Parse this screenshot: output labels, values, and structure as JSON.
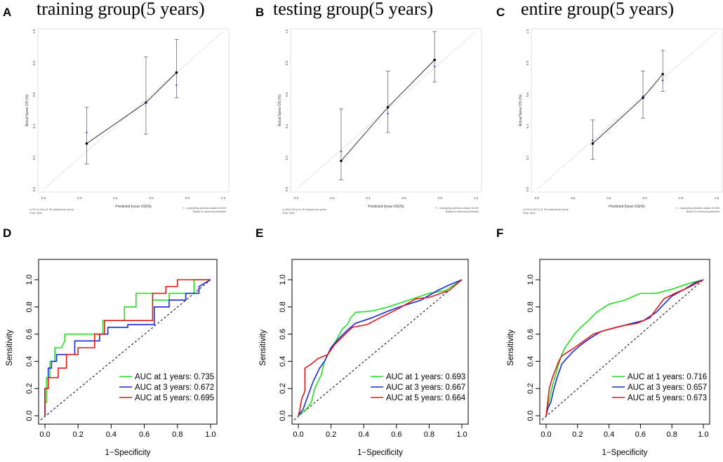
{
  "figure": {
    "panels_top": [
      {
        "letter": "A",
        "title": "training group(5 years)"
      },
      {
        "letter": "B",
        "title": "testing group(5 years)"
      },
      {
        "letter": "C",
        "title": "entire group(5 years)"
      }
    ],
    "panels_bottom": [
      {
        "letter": "D"
      },
      {
        "letter": "E"
      },
      {
        "letter": "F"
      }
    ]
  },
  "colors": {
    "green": "#22e022",
    "blue": "#1a2ad8",
    "red": "#e01818",
    "black": "#000000",
    "diag_gray": "#dddddd",
    "calib_blue": "#3344dd"
  },
  "chart_data": [
    {
      "type": "scatter",
      "panel": "A",
      "title": "training group(5 years)",
      "xlabel": "Predicted 5year OS(%)",
      "ylabel": "Actual 5year OS (%)",
      "xlim": [
        0,
        1
      ],
      "ylim": [
        0,
        1
      ],
      "x_ticks": [
        "0.0",
        "0.2",
        "0.4",
        "0.6",
        "0.8",
        "1.0"
      ],
      "y_ticks": [
        "0.0",
        "0.2",
        "0.4",
        "0.6",
        "0.8",
        "1.0"
      ],
      "points": [
        {
          "x": 0.24,
          "y": 0.29,
          "lower": 0.16,
          "upper": 0.52,
          "corrected": 0.36
        },
        {
          "x": 0.57,
          "y": 0.55,
          "lower": 0.35,
          "upper": 0.84,
          "corrected": 0.55
        },
        {
          "x": 0.74,
          "y": 0.74,
          "lower": 0.58,
          "upper": 0.95,
          "corrected": 0.66
        }
      ],
      "footnote_left": [
        "n=107 d=49 p=8, 50 subjects per group",
        "Gray: ideal"
      ],
      "footnote_right": [
        "X - resampling optimism added, B=500",
        "Based on observed-predicted"
      ]
    },
    {
      "type": "scatter",
      "panel": "B",
      "title": "testing group(5 years)",
      "xlabel": "Predicted 5year OS(%)",
      "ylabel": "Actual 5year OS (%)",
      "xlim": [
        0,
        1
      ],
      "ylim": [
        0,
        1
      ],
      "x_ticks": [
        "0.0",
        "0.2",
        "0.4",
        "0.6",
        "0.8",
        "1.0"
      ],
      "y_ticks": [
        "0.0",
        "0.2",
        "0.4",
        "0.6",
        "0.8",
        "1.0"
      ],
      "points": [
        {
          "x": 0.25,
          "y": 0.18,
          "lower": 0.06,
          "upper": 0.51,
          "corrected": 0.24
        },
        {
          "x": 0.51,
          "y": 0.52,
          "lower": 0.36,
          "upper": 0.75,
          "corrected": 0.48
        },
        {
          "x": 0.77,
          "y": 0.82,
          "lower": 0.68,
          "upper": 1.0,
          "corrected": 0.78
        }
      ],
      "footnote_left": [
        "n=106 d=50 p=8, 50 subjects per group",
        "Gray: ideal"
      ],
      "footnote_right": [
        "X - resampling optimism added, B=500",
        "Based on observed-predicted"
      ]
    },
    {
      "type": "scatter",
      "panel": "C",
      "title": "entire group(5 years)",
      "xlabel": "Predicted 5year OS(%)",
      "ylabel": "Actual 5year OS (%)",
      "xlim": [
        0,
        1
      ],
      "ylim": [
        0,
        1
      ],
      "x_ticks": [
        "0.0",
        "0.2",
        "0.4",
        "0.6",
        "0.8",
        "1.0"
      ],
      "y_ticks": [
        "0.0",
        "0.2",
        "0.4",
        "0.6",
        "0.8",
        "1.0"
      ],
      "points": [
        {
          "x": 0.31,
          "y": 0.29,
          "lower": 0.19,
          "upper": 0.44,
          "corrected": 0.31
        },
        {
          "x": 0.59,
          "y": 0.58,
          "lower": 0.45,
          "upper": 0.75,
          "corrected": 0.59
        },
        {
          "x": 0.7,
          "y": 0.73,
          "lower": 0.62,
          "upper": 0.88,
          "corrected": 0.69
        }
      ],
      "footnote_left": [
        "n=213 d=107 p=8, 50 subjects per group",
        "Gray: ideal"
      ],
      "footnote_right": [
        "X - resampling optimism added, B=500",
        "Based on observed-predicted"
      ]
    },
    {
      "type": "line",
      "panel": "D",
      "xlabel": "1−Specificity",
      "ylabel": "Sensitivity",
      "xlim": [
        0,
        1
      ],
      "ylim": [
        0,
        1
      ],
      "x_ticks": [
        "0.0",
        "0.2",
        "0.4",
        "0.6",
        "0.8",
        "1.0"
      ],
      "y_ticks": [
        "0.0",
        "0.2",
        "0.4",
        "0.6",
        "0.8",
        "1.0"
      ],
      "legend": [
        "AUC at 1 years: 0.735",
        "AUC at 3 years: 0.672",
        "AUC at 5 years: 0.695"
      ],
      "legend_position": "bottom-right",
      "series": [
        {
          "name": "AUC at 1 years: 0.735",
          "color": "green",
          "x": [
            0,
            0,
            0.01,
            0.01,
            0.03,
            0.03,
            0.06,
            0.06,
            0.1,
            0.12,
            0.12,
            0.35,
            0.35,
            0.48,
            0.48,
            0.55,
            0.55,
            0.65,
            0.65,
            0.75,
            0.75,
            0.9,
            0.9,
            1
          ],
          "y": [
            0,
            0.1,
            0.1,
            0.28,
            0.28,
            0.4,
            0.4,
            0.5,
            0.5,
            0.55,
            0.6,
            0.6,
            0.7,
            0.7,
            0.8,
            0.8,
            0.9,
            0.9,
            0.85,
            0.85,
            0.9,
            0.9,
            1.0,
            1.0
          ]
        },
        {
          "name": "AUC at 3 years: 0.672",
          "color": "blue",
          "x": [
            0,
            0,
            0.02,
            0.02,
            0.04,
            0.04,
            0.07,
            0.07,
            0.18,
            0.18,
            0.33,
            0.33,
            0.38,
            0.38,
            0.5,
            0.5,
            0.66,
            0.66,
            0.75,
            0.75,
            0.85,
            0.85,
            0.93,
            0.93,
            1
          ],
          "y": [
            0,
            0.2,
            0.2,
            0.35,
            0.35,
            0.4,
            0.4,
            0.45,
            0.45,
            0.55,
            0.55,
            0.6,
            0.6,
            0.65,
            0.65,
            0.67,
            0.67,
            0.8,
            0.8,
            0.85,
            0.85,
            0.9,
            0.9,
            0.95,
            1.0
          ]
        },
        {
          "name": "AUC at 5 years: 0.695",
          "color": "red",
          "x": [
            0,
            0,
            0.02,
            0.02,
            0.08,
            0.08,
            0.13,
            0.13,
            0.2,
            0.2,
            0.3,
            0.3,
            0.36,
            0.36,
            0.65,
            0.65,
            0.73,
            0.73,
            0.8,
            0.8,
            0.95,
            0.95,
            1
          ],
          "y": [
            0,
            0.2,
            0.2,
            0.28,
            0.28,
            0.35,
            0.35,
            0.45,
            0.45,
            0.5,
            0.5,
            0.6,
            0.6,
            0.7,
            0.7,
            0.9,
            0.9,
            0.95,
            0.95,
            1.0,
            1.0,
            1.0,
            1.0
          ]
        }
      ]
    },
    {
      "type": "line",
      "panel": "E",
      "xlabel": "1−Specificity",
      "ylabel": "Sensitivity",
      "xlim": [
        0,
        1
      ],
      "ylim": [
        0,
        1
      ],
      "x_ticks": [
        "0.0",
        "0.2",
        "0.4",
        "0.6",
        "0.8",
        "1.0"
      ],
      "y_ticks": [
        "0.0",
        "0.2",
        "0.4",
        "0.6",
        "0.8",
        "1.0"
      ],
      "legend": [
        "AUC at 1 years: 0.693",
        "AUC at 3 years: 0.667",
        "AUC at 5 years: 0.664"
      ],
      "legend_position": "bottom-right",
      "series": [
        {
          "name": "AUC at 1 years: 0.693",
          "color": "green",
          "x": [
            0,
            0.03,
            0.05,
            0.08,
            0.1,
            0.14,
            0.16,
            0.2,
            0.23,
            0.27,
            0.3,
            0.32,
            0.35,
            0.45,
            0.55,
            0.65,
            0.8,
            0.9,
            1
          ],
          "y": [
            0,
            0.03,
            0.05,
            0.1,
            0.2,
            0.3,
            0.4,
            0.5,
            0.55,
            0.64,
            0.67,
            0.72,
            0.76,
            0.77,
            0.8,
            0.84,
            0.9,
            0.92,
            1.0
          ]
        },
        {
          "name": "AUC at 3 years: 0.667",
          "color": "blue",
          "x": [
            0,
            0.03,
            0.06,
            0.09,
            0.13,
            0.16,
            0.2,
            0.25,
            0.3,
            0.35,
            0.45,
            0.55,
            0.62,
            0.75,
            0.85,
            0.92,
            1
          ],
          "y": [
            0,
            0.05,
            0.15,
            0.25,
            0.35,
            0.4,
            0.5,
            0.57,
            0.63,
            0.68,
            0.72,
            0.77,
            0.8,
            0.85,
            0.92,
            0.96,
            1.0
          ]
        },
        {
          "name": "AUC at 5 years: 0.664",
          "color": "red",
          "x": [
            0,
            0.01,
            0.02,
            0.04,
            0.04,
            0.08,
            0.12,
            0.18,
            0.22,
            0.27,
            0.33,
            0.42,
            0.5,
            0.6,
            0.72,
            0.8,
            0.92,
            1
          ],
          "y": [
            0,
            0.05,
            0.12,
            0.18,
            0.35,
            0.38,
            0.42,
            0.45,
            0.52,
            0.58,
            0.65,
            0.67,
            0.72,
            0.78,
            0.86,
            0.87,
            0.92,
            1.0
          ]
        }
      ]
    },
    {
      "type": "line",
      "panel": "F",
      "xlabel": "1−Specificity",
      "ylabel": "Sensitivity",
      "xlim": [
        0,
        1
      ],
      "ylim": [
        0,
        1
      ],
      "x_ticks": [
        "0.0",
        "0.2",
        "0.4",
        "0.6",
        "0.8",
        "1.0"
      ],
      "y_ticks": [
        "0.0",
        "0.2",
        "0.4",
        "0.6",
        "0.8",
        "1.0"
      ],
      "legend": [
        "AUC at 1 years: 0.716",
        "AUC at 3 years: 0.657",
        "AUC at 5 years: 0.673"
      ],
      "legend_position": "bottom-right",
      "series": [
        {
          "name": "AUC at 1 years: 0.716",
          "color": "green",
          "x": [
            0,
            0.01,
            0.02,
            0.04,
            0.06,
            0.08,
            0.1,
            0.12,
            0.15,
            0.18,
            0.22,
            0.27,
            0.32,
            0.4,
            0.5,
            0.6,
            0.7,
            0.8,
            0.9,
            1
          ],
          "y": [
            0,
            0.05,
            0.12,
            0.22,
            0.3,
            0.38,
            0.45,
            0.5,
            0.55,
            0.6,
            0.65,
            0.7,
            0.76,
            0.82,
            0.85,
            0.9,
            0.9,
            0.93,
            0.97,
            1.0
          ]
        },
        {
          "name": "AUC at 3 years: 0.657",
          "color": "blue",
          "x": [
            0,
            0.01,
            0.03,
            0.05,
            0.07,
            0.1,
            0.13,
            0.17,
            0.22,
            0.28,
            0.35,
            0.45,
            0.55,
            0.62,
            0.7,
            0.8,
            0.88,
            0.95,
            1
          ],
          "y": [
            0,
            0.05,
            0.1,
            0.2,
            0.28,
            0.38,
            0.42,
            0.47,
            0.52,
            0.57,
            0.62,
            0.65,
            0.68,
            0.7,
            0.76,
            0.88,
            0.93,
            0.98,
            1.0
          ]
        },
        {
          "name": "AUC at 5 years: 0.673",
          "color": "red",
          "x": [
            0,
            0.01,
            0.02,
            0.04,
            0.06,
            0.08,
            0.1,
            0.14,
            0.18,
            0.24,
            0.3,
            0.38,
            0.48,
            0.58,
            0.66,
            0.75,
            0.82,
            0.9,
            1
          ],
          "y": [
            0,
            0.1,
            0.2,
            0.28,
            0.34,
            0.4,
            0.44,
            0.47,
            0.5,
            0.55,
            0.6,
            0.63,
            0.66,
            0.68,
            0.72,
            0.86,
            0.9,
            0.94,
            1.0
          ]
        }
      ]
    }
  ]
}
